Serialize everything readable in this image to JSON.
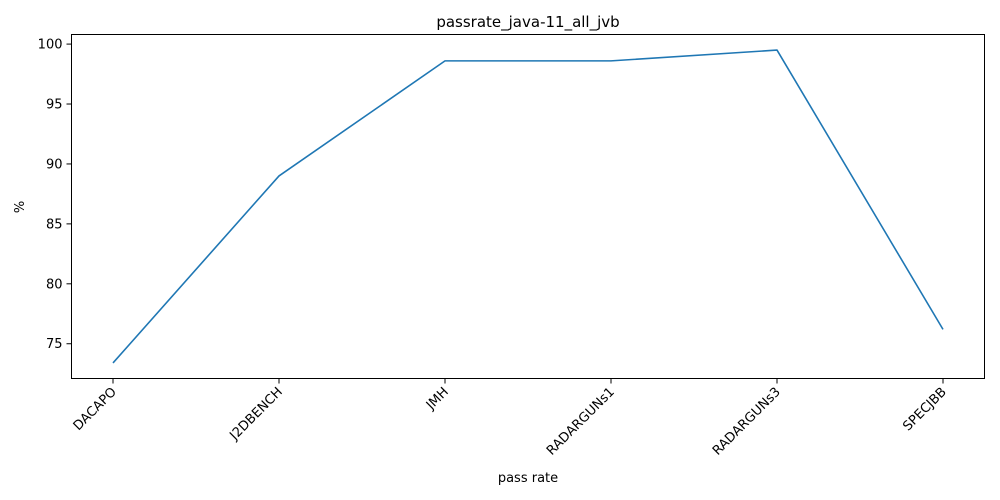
{
  "chart_data": {
    "type": "line",
    "title": "passrate_java-11_all_jvb",
    "xlabel": "pass rate",
    "ylabel": "%",
    "categories": [
      "DACAPO",
      "J2DBENCH",
      "JMH",
      "RADARGUNs1",
      "RADARGUNs3",
      "SPECJBB"
    ],
    "series": [
      {
        "values": [
          73.4,
          89.0,
          98.6,
          98.6,
          99.5,
          76.2
        ]
      }
    ],
    "ylim": [
      72.1,
      100.8
    ],
    "yticks": [
      75,
      80,
      85,
      90,
      95,
      100
    ],
    "grid": false,
    "line_color": "#1f77b4"
  }
}
